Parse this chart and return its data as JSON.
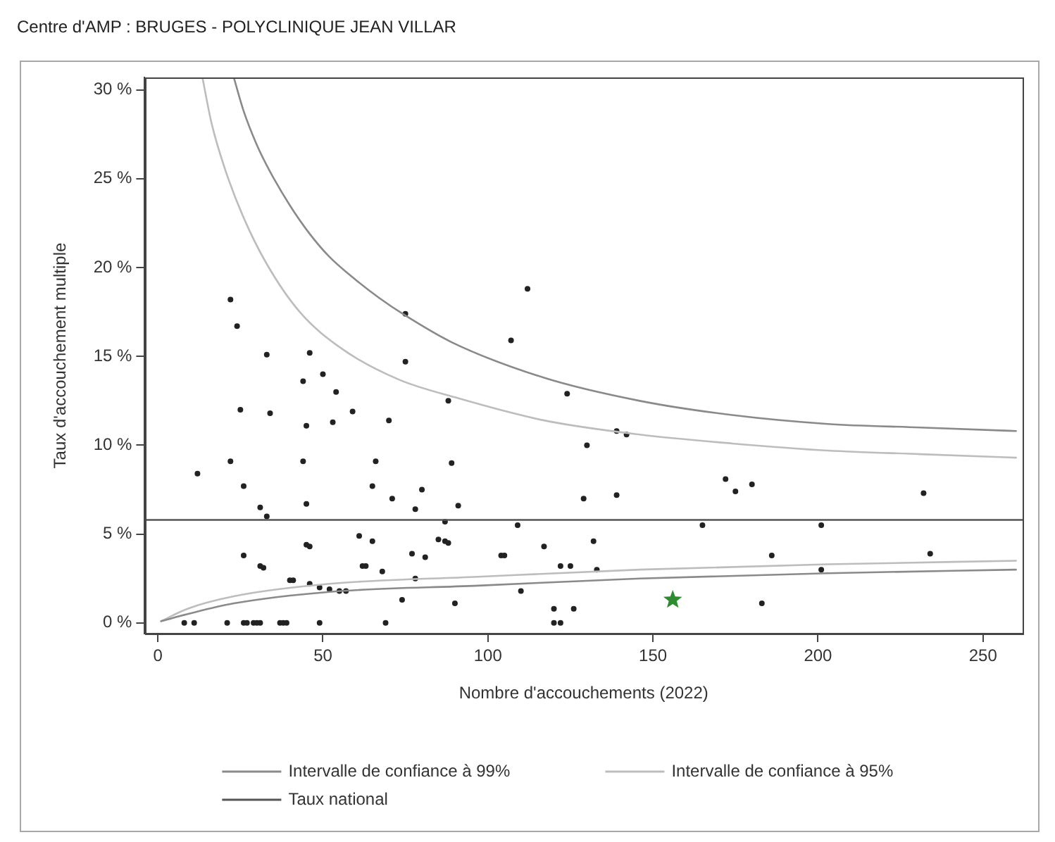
{
  "chart_data": {
    "type": "scatter",
    "title": "Centre d'AMP : BRUGES - POLYCLINIQUE JEAN VILLAR",
    "xlabel": "Nombre d'accouchements (2022)",
    "ylabel": "Taux d'accouchement multiple",
    "xlim": [
      -4,
      262
    ],
    "xticks": [
      0,
      50,
      100,
      150,
      200,
      250
    ],
    "ylim": [
      -0.6,
      30.7
    ],
    "yticks": [
      {
        "value": 0,
        "label": "0 %"
      },
      {
        "value": 5,
        "label": "5 %"
      },
      {
        "value": 10,
        "label": "10 %"
      },
      {
        "value": 15,
        "label": "15 %"
      },
      {
        "value": 20,
        "label": "20 %"
      },
      {
        "value": 25,
        "label": "25 %"
      },
      {
        "value": 30,
        "label": "30 %"
      }
    ],
    "grid": false,
    "legend": "bottom",
    "series": [
      {
        "type": "line",
        "name": "Intervalle de confiance à 99%",
        "color": "#8a8a8a",
        "marker": "none",
        "x": [
          23,
          26,
          30,
          34,
          40,
          46,
          52,
          60,
          67,
          75,
          89,
          117,
          146,
          174,
          203,
          231,
          260
        ],
        "values": [
          30.7,
          28.8,
          26.9,
          25.4,
          23.5,
          21.9,
          20.6,
          19.3,
          18.3,
          17.3,
          15.8,
          13.8,
          12.5,
          11.7,
          11.2,
          11.0,
          10.8
        ]
      },
      {
        "type": "line",
        "color": "#8a8a8a",
        "marker": "none",
        "x": [
          1,
          9,
          23,
          52,
          97,
          146,
          203,
          260
        ],
        "values": [
          0.1,
          0.5,
          1.1,
          1.75,
          2.1,
          2.5,
          2.8,
          3.0
        ]
      },
      {
        "type": "line",
        "name": "Intervalle de confiance à 95%",
        "color": "#bdbdbd",
        "marker": "none",
        "x": [
          13.5,
          16.3,
          20.6,
          26,
          33,
          43,
          56,
          73,
          90,
          117,
          146,
          174,
          203,
          231,
          260
        ],
        "values": [
          30.7,
          28.1,
          25.4,
          22.8,
          20.2,
          17.5,
          15.4,
          13.7,
          12.7,
          11.4,
          10.6,
          10.1,
          9.7,
          9.5,
          9.3
        ]
      },
      {
        "type": "line",
        "color": "#bdbdbd",
        "marker": "none",
        "x": [
          1,
          9,
          23,
          52,
          97,
          146,
          203,
          260
        ],
        "values": [
          0.1,
          0.8,
          1.5,
          2.2,
          2.6,
          3.0,
          3.3,
          3.5
        ]
      },
      {
        "type": "line",
        "name": "Taux national",
        "color": "#555555",
        "marker": "none",
        "x": [
          -4,
          262
        ],
        "values": [
          5.8,
          5.8
        ]
      },
      {
        "type": "scatter",
        "color": "#222222",
        "marker": "circle",
        "x": [
          22,
          24,
          33,
          46,
          75,
          75,
          44,
          50,
          54,
          25,
          34,
          45,
          53,
          59,
          70,
          88,
          12,
          22,
          44,
          66,
          89,
          26,
          65,
          80,
          71,
          45,
          91,
          31,
          33,
          78,
          112,
          107,
          124,
          139,
          142,
          130,
          129,
          139,
          172,
          175,
          180,
          232,
          87,
          26,
          31,
          32,
          45,
          46,
          40,
          41,
          46,
          49,
          52,
          55,
          57,
          61,
          65,
          62,
          63,
          68,
          74,
          77,
          81,
          78,
          85,
          87,
          88,
          90,
          8,
          11,
          21,
          26,
          27,
          29,
          30,
          31,
          37,
          38,
          39,
          49,
          69,
          109,
          165,
          201,
          104,
          105,
          117,
          132,
          122,
          125,
          133,
          186,
          234,
          201,
          110,
          120,
          126,
          183,
          120,
          122
        ],
        "values": [
          18.2,
          16.7,
          15.1,
          15.2,
          17.4,
          14.7,
          13.6,
          14.0,
          13.0,
          12.0,
          11.8,
          11.1,
          11.3,
          11.9,
          11.4,
          12.5,
          8.4,
          9.1,
          9.1,
          9.1,
          9.0,
          7.7,
          7.7,
          7.5,
          7.0,
          6.7,
          6.6,
          6.5,
          6.0,
          6.4,
          18.8,
          15.9,
          12.9,
          10.8,
          10.6,
          10.0,
          7.0,
          7.2,
          8.1,
          7.4,
          7.8,
          7.3,
          5.7,
          3.8,
          3.2,
          3.1,
          4.4,
          4.3,
          2.4,
          2.4,
          2.2,
          2.0,
          1.9,
          1.8,
          1.8,
          4.9,
          4.6,
          3.2,
          3.2,
          2.9,
          1.3,
          3.9,
          3.7,
          2.5,
          4.7,
          4.6,
          4.5,
          1.1,
          0,
          0,
          0,
          0,
          0,
          0,
          0,
          0,
          0,
          0,
          0,
          0,
          0,
          5.5,
          5.5,
          5.5,
          3.8,
          3.8,
          4.3,
          4.6,
          3.2,
          3.2,
          3.0,
          3.8,
          3.9,
          3.0,
          1.8,
          0.8,
          0.8,
          1.1,
          0,
          0
        ]
      },
      {
        "type": "scatter",
        "color": "#2e8b2e",
        "marker": "star",
        "x": [
          156
        ],
        "values": [
          1.3
        ]
      }
    ]
  }
}
